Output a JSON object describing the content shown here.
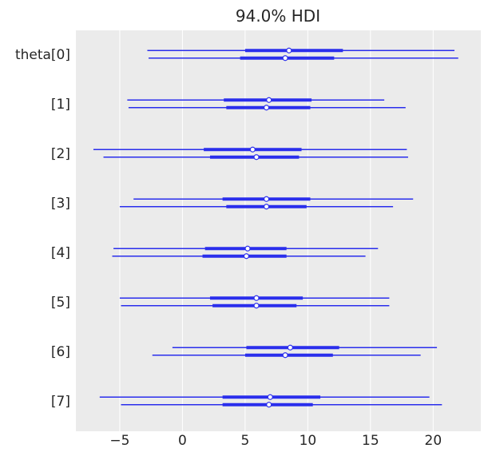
{
  "chart_data": {
    "type": "forest",
    "title": "94.0% HDI",
    "xlabel": "",
    "ylabel": "",
    "xlim": [
      -8.5,
      23.8
    ],
    "xticks": [
      -5,
      0,
      5,
      10,
      15,
      20
    ],
    "xtick_labels": [
      "−5",
      "0",
      "5",
      "10",
      "15",
      "20"
    ],
    "grid": true,
    "legend": "none",
    "colors": {
      "line": "#2a2eec",
      "background": "#ebebeb",
      "grid": "#ffffff",
      "marker_fill": "#ffffff"
    },
    "parameters": [
      {
        "label": "theta[0]",
        "chains": [
          {
            "hdi": [
              -2.8,
              21.7
            ],
            "iqr": [
              5.0,
              12.8
            ],
            "median": 8.5
          },
          {
            "hdi": [
              -2.7,
              22.0
            ],
            "iqr": [
              4.6,
              12.1
            ],
            "median": 8.2
          }
        ]
      },
      {
        "label": "[1]",
        "chains": [
          {
            "hdi": [
              -4.4,
              16.1
            ],
            "iqr": [
              3.3,
              10.3
            ],
            "median": 6.9
          },
          {
            "hdi": [
              -4.3,
              17.8
            ],
            "iqr": [
              3.5,
              10.2
            ],
            "median": 6.7
          }
        ]
      },
      {
        "label": "[2]",
        "chains": [
          {
            "hdi": [
              -7.1,
              17.9
            ],
            "iqr": [
              1.7,
              9.5
            ],
            "median": 5.6
          },
          {
            "hdi": [
              -6.3,
              18.0
            ],
            "iqr": [
              2.2,
              9.3
            ],
            "median": 5.9
          }
        ]
      },
      {
        "label": "[3]",
        "chains": [
          {
            "hdi": [
              -3.9,
              18.4
            ],
            "iqr": [
              3.2,
              10.2
            ],
            "median": 6.7
          },
          {
            "hdi": [
              -5.0,
              16.8
            ],
            "iqr": [
              3.5,
              9.9
            ],
            "median": 6.7
          }
        ]
      },
      {
        "label": "[4]",
        "chains": [
          {
            "hdi": [
              -5.5,
              15.6
            ],
            "iqr": [
              1.8,
              8.3
            ],
            "median": 5.2
          },
          {
            "hdi": [
              -5.6,
              14.6
            ],
            "iqr": [
              1.6,
              8.3
            ],
            "median": 5.1
          }
        ]
      },
      {
        "label": "[5]",
        "chains": [
          {
            "hdi": [
              -5.0,
              16.5
            ],
            "iqr": [
              2.2,
              9.6
            ],
            "median": 5.9
          },
          {
            "hdi": [
              -4.9,
              16.5
            ],
            "iqr": [
              2.4,
              9.1
            ],
            "median": 5.9
          }
        ]
      },
      {
        "label": "[6]",
        "chains": [
          {
            "hdi": [
              -0.8,
              20.3
            ],
            "iqr": [
              5.1,
              12.5
            ],
            "median": 8.6
          },
          {
            "hdi": [
              -2.4,
              19.0
            ],
            "iqr": [
              5.0,
              12.0
            ],
            "median": 8.2
          }
        ]
      },
      {
        "label": "[7]",
        "chains": [
          {
            "hdi": [
              -6.6,
              19.7
            ],
            "iqr": [
              3.2,
              11.0
            ],
            "median": 7.0
          },
          {
            "hdi": [
              -4.9,
              20.7
            ],
            "iqr": [
              3.2,
              10.4
            ],
            "median": 6.9
          }
        ]
      }
    ]
  }
}
